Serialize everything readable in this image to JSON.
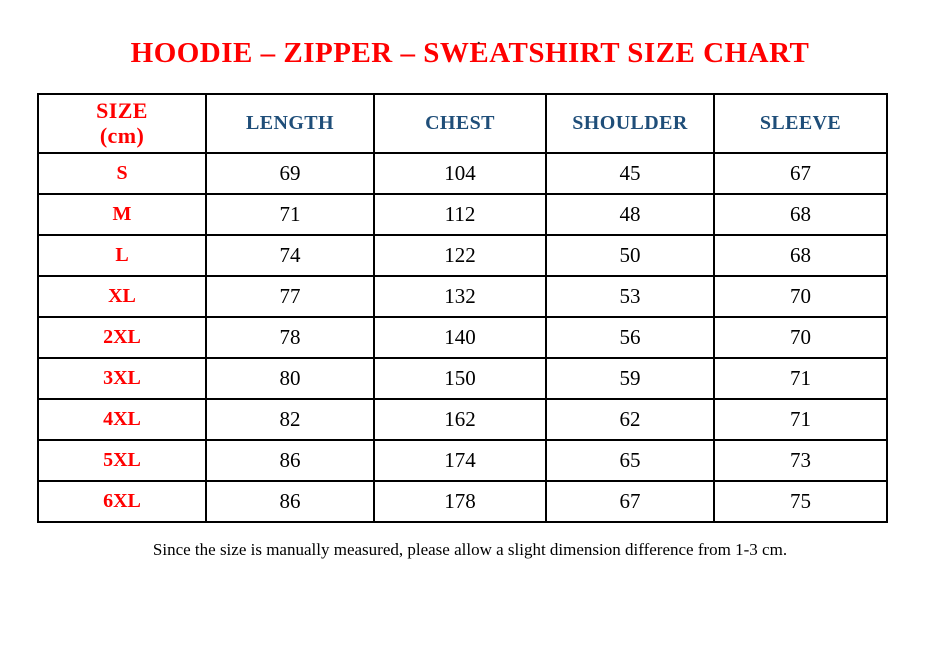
{
  "page": {
    "stray_dot": "."
  },
  "colors": {
    "accent_red": "#FF0000",
    "header_blue": "#1F4E79",
    "value_black": "#000000",
    "border_black": "#000000",
    "background": "#FFFFFF"
  },
  "chart_data": {
    "type": "table",
    "title": "HOODIE – ZIPPER – SWEATSHIRT SIZE CHART",
    "unit": "cm",
    "columns": [
      "SIZE (cm)",
      "LENGTH",
      "CHEST",
      "SHOULDER",
      "SLEEVE"
    ],
    "header": {
      "size_line1": "SIZE",
      "size_line2": "(cm)",
      "length": "LENGTH",
      "chest": "CHEST",
      "shoulder": "SHOULDER",
      "sleeve": "SLEEVE"
    },
    "rows": [
      {
        "size": "S",
        "length": "69",
        "chest": "104",
        "shoulder": "45",
        "sleeve": "67"
      },
      {
        "size": "M",
        "length": "71",
        "chest": "112",
        "shoulder": "48",
        "sleeve": "68"
      },
      {
        "size": "L",
        "length": "74",
        "chest": "122",
        "shoulder": "50",
        "sleeve": "68"
      },
      {
        "size": "XL",
        "length": "77",
        "chest": "132",
        "shoulder": "53",
        "sleeve": "70"
      },
      {
        "size": "2XL",
        "length": "78",
        "chest": "140",
        "shoulder": "56",
        "sleeve": "70"
      },
      {
        "size": "3XL",
        "length": "80",
        "chest": "150",
        "shoulder": "59",
        "sleeve": "71"
      },
      {
        "size": "4XL",
        "length": "82",
        "chest": "162",
        "shoulder": "62",
        "sleeve": "71"
      },
      {
        "size": "5XL",
        "length": "86",
        "chest": "174",
        "shoulder": "65",
        "sleeve": "73"
      },
      {
        "size": "6XL",
        "length": "86",
        "chest": "178",
        "shoulder": "67",
        "sleeve": "75"
      }
    ],
    "footnote": "Since the size is manually measured, please allow a slight dimension difference from 1-3 cm."
  }
}
